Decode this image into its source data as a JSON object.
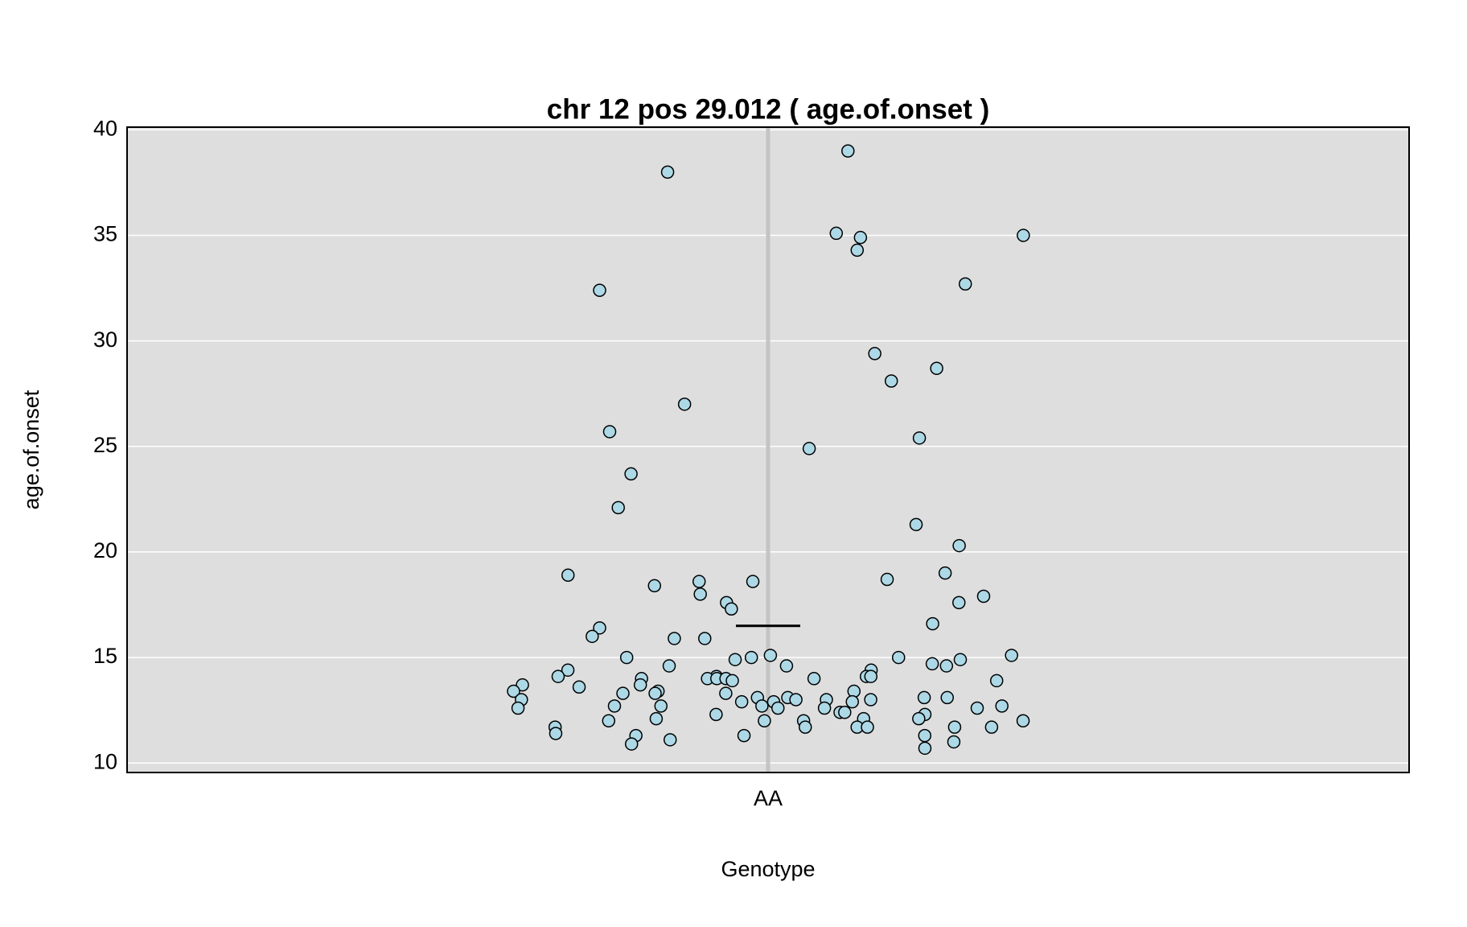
{
  "chart_data": {
    "type": "scatter",
    "title": "chr 12 pos 29.012 ( age.of.onset )",
    "xlabel": "Genotype",
    "ylabel": "age.of.onset",
    "categories": [
      "AA"
    ],
    "values": [
      39.0,
      38.0,
      35.1,
      35.0,
      34.9,
      34.3,
      32.4,
      32.7,
      29.4,
      28.7,
      28.1,
      27.0,
      25.4,
      25.7,
      24.9,
      23.7,
      22.1,
      21.3,
      20.3,
      19.0,
      18.9,
      18.6,
      18.7,
      18.6,
      18.4,
      18.0,
      17.9,
      17.6,
      17.6,
      17.3,
      16.6,
      16.4,
      16.0,
      15.9,
      15.9,
      15.1,
      15.1,
      15.0,
      15.0,
      15.0,
      14.9,
      14.9,
      14.7,
      14.6,
      14.6,
      14.6,
      14.4,
      14.4,
      14.0,
      14.1,
      14.1,
      14.1,
      14.1,
      14.0,
      14.0,
      14.0,
      14.0,
      13.9,
      13.9,
      13.7,
      13.7,
      13.6,
      13.4,
      13.4,
      13.4,
      13.3,
      13.3,
      13.3,
      13.1,
      13.1,
      13.1,
      13.1,
      13.0,
      13.0,
      13.0,
      13.0,
      12.9,
      12.9,
      12.9,
      12.7,
      12.7,
      12.7,
      12.7,
      12.6,
      12.6,
      12.6,
      12.6,
      12.4,
      12.4,
      12.3,
      12.3,
      12.1,
      12.1,
      12.1,
      12.0,
      12.0,
      12.0,
      12.0,
      11.7,
      11.7,
      11.7,
      11.7,
      11.7,
      11.7,
      11.4,
      11.3,
      11.3,
      11.3,
      11.1,
      11.0,
      10.9,
      10.7
    ],
    "mean": 16.5,
    "color": "#add8e6",
    "ylim": [
      9.55,
      40.13
    ],
    "yticks": [
      10,
      15,
      20,
      25,
      30,
      35,
      40
    ],
    "grid": true
  }
}
